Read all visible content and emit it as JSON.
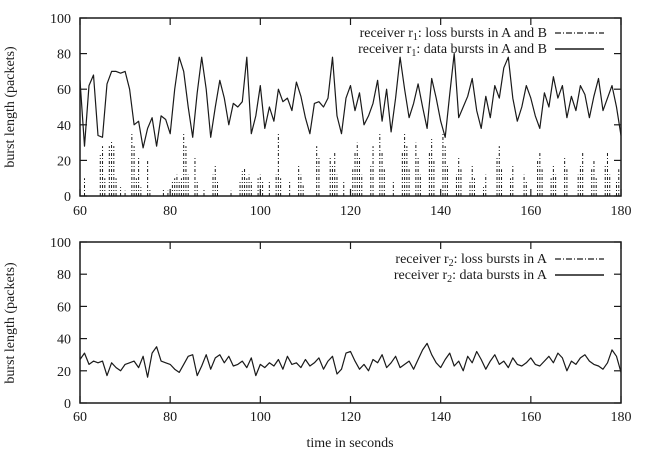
{
  "figure": {
    "background": "#ffffff",
    "line_color": "#1a1a1a"
  },
  "chart_data": [
    {
      "type": "line",
      "position": "top",
      "title": "",
      "xlabel": "",
      "ylabel": "burst length (packets)",
      "xlim": [
        60,
        180
      ],
      "ylim": [
        0,
        100
      ],
      "xticks": [
        60,
        80,
        100,
        120,
        140,
        160,
        180
      ],
      "yticks": [
        0,
        20,
        40,
        60,
        80,
        100
      ],
      "grid": false,
      "legend_position": "top-right-inside",
      "series": [
        {
          "name_pre": "receiver r",
          "name_sub": "1",
          "name_post": ": loss bursts in A and B",
          "style": "impulses-dashdot",
          "points": [
            [
              61,
              10
            ],
            [
              64.5,
              23
            ],
            [
              65,
              28
            ],
            [
              65.5,
              10
            ],
            [
              66.5,
              28
            ],
            [
              67,
              31
            ],
            [
              67.5,
              28
            ],
            [
              68,
              10
            ],
            [
              69,
              5
            ],
            [
              70,
              3
            ],
            [
              71.5,
              35
            ],
            [
              72,
              28
            ],
            [
              72.5,
              10
            ],
            [
              73,
              22
            ],
            [
              73.5,
              5
            ],
            [
              75,
              20
            ],
            [
              75.5,
              4
            ],
            [
              78.5,
              4
            ],
            [
              79.5,
              3
            ],
            [
              80.5,
              8
            ],
            [
              81,
              10
            ],
            [
              81.5,
              12
            ],
            [
              82,
              8
            ],
            [
              82.5,
              10
            ],
            [
              83,
              35
            ],
            [
              83.5,
              28
            ],
            [
              84,
              12
            ],
            [
              85.5,
              22
            ],
            [
              86,
              8
            ],
            [
              87.5,
              4
            ],
            [
              89.5,
              12
            ],
            [
              90,
              18
            ],
            [
              90.5,
              8
            ],
            [
              93.5,
              3
            ],
            [
              95.5,
              8
            ],
            [
              96,
              14
            ],
            [
              96.5,
              16
            ],
            [
              97,
              10
            ],
            [
              97.5,
              12
            ],
            [
              98,
              8
            ],
            [
              99.5,
              10
            ],
            [
              100,
              12
            ],
            [
              100.5,
              8
            ],
            [
              102,
              8
            ],
            [
              103.5,
              12
            ],
            [
              104,
              35
            ],
            [
              104.5,
              10
            ],
            [
              106.5,
              8
            ],
            [
              108.5,
              18
            ],
            [
              109,
              12
            ],
            [
              109.5,
              6
            ],
            [
              112.5,
              28
            ],
            [
              113,
              22
            ],
            [
              115.5,
              22
            ],
            [
              116,
              18
            ],
            [
              116.5,
              25
            ],
            [
              117,
              12
            ],
            [
              118.5,
              8
            ],
            [
              120.5,
              15
            ],
            [
              121,
              25
            ],
            [
              121.5,
              30
            ],
            [
              122,
              22
            ],
            [
              122.5,
              12
            ],
            [
              124.5,
              18
            ],
            [
              125,
              28
            ],
            [
              126.5,
              35
            ],
            [
              127,
              25
            ],
            [
              127.5,
              15
            ],
            [
              129.5,
              8
            ],
            [
              131.5,
              25
            ],
            [
              132,
              35
            ],
            [
              132.5,
              28
            ],
            [
              133,
              15
            ],
            [
              134.5,
              30
            ],
            [
              135,
              22
            ],
            [
              135.5,
              12
            ],
            [
              137.5,
              25
            ],
            [
              138,
              32
            ],
            [
              138.5,
              20
            ],
            [
              140.5,
              35
            ],
            [
              141,
              28
            ],
            [
              141.5,
              18
            ],
            [
              143.5,
              12
            ],
            [
              144,
              22
            ],
            [
              144.5,
              15
            ],
            [
              146.5,
              8
            ],
            [
              147,
              18
            ],
            [
              147.5,
              10
            ],
            [
              149.5,
              5
            ],
            [
              150,
              12
            ],
            [
              152.5,
              22
            ],
            [
              153,
              28
            ],
            [
              153.5,
              15
            ],
            [
              155.5,
              10
            ],
            [
              156,
              18
            ],
            [
              158.5,
              12
            ],
            [
              159,
              8
            ],
            [
              161.5,
              20
            ],
            [
              162,
              25
            ],
            [
              162.5,
              15
            ],
            [
              164.5,
              10
            ],
            [
              165,
              18
            ],
            [
              165.5,
              12
            ],
            [
              167.5,
              22
            ],
            [
              168,
              15
            ],
            [
              170.5,
              12
            ],
            [
              171,
              18
            ],
            [
              171.5,
              25
            ],
            [
              173.5,
              15
            ],
            [
              174,
              20
            ],
            [
              174.5,
              10
            ],
            [
              176.5,
              18
            ],
            [
              177,
              25
            ],
            [
              177.5,
              12
            ],
            [
              179,
              8
            ],
            [
              179.5,
              15
            ]
          ]
        },
        {
          "name_pre": "receiver r",
          "name_sub": "1",
          "name_post": ": data bursts in A and B",
          "style": "solid-line",
          "x_start": 60,
          "x_step": 1,
          "values": [
            65,
            28,
            62,
            68,
            34,
            33,
            63,
            70,
            70,
            69,
            70,
            60,
            40,
            42,
            27,
            38,
            44,
            28,
            45,
            43,
            35,
            60,
            78,
            70,
            50,
            33,
            58,
            78,
            60,
            33,
            50,
            65,
            55,
            40,
            52,
            50,
            53,
            78,
            35,
            45,
            62,
            38,
            50,
            42,
            60,
            53,
            55,
            48,
            64,
            56,
            44,
            35,
            52,
            53,
            50,
            55,
            78,
            45,
            35,
            55,
            62,
            48,
            58,
            40,
            45,
            52,
            65,
            42,
            60,
            36,
            55,
            78,
            60,
            44,
            52,
            63,
            50,
            38,
            66,
            55,
            42,
            33,
            57,
            80,
            44,
            50,
            56,
            66,
            48,
            38,
            56,
            44,
            62,
            55,
            72,
            78,
            55,
            42,
            50,
            62,
            55,
            45,
            38,
            58,
            50,
            67,
            55,
            62,
            44,
            56,
            48,
            62,
            57,
            44,
            56,
            66,
            48,
            55,
            62,
            50,
            34
          ]
        }
      ]
    },
    {
      "type": "line",
      "position": "bottom",
      "title": "",
      "xlabel": "time in seconds",
      "ylabel": "burst length (packets)",
      "xlim": [
        60,
        180
      ],
      "ylim": [
        0,
        100
      ],
      "xticks": [
        60,
        80,
        100,
        120,
        140,
        160,
        180
      ],
      "yticks": [
        0,
        20,
        40,
        60,
        80,
        100
      ],
      "grid": false,
      "legend_position": "top-right-inside",
      "series": [
        {
          "name_pre": "receiver r",
          "name_sub": "2",
          "name_post": ": loss bursts in A",
          "style": "impulses-dashdot",
          "points": []
        },
        {
          "name_pre": "receiver r",
          "name_sub": "2",
          "name_post": ": data bursts in A",
          "style": "solid-line",
          "x_start": 60,
          "x_step": 1,
          "values": [
            27,
            31,
            24,
            26,
            25,
            26,
            17,
            25,
            22,
            20,
            24,
            25,
            26,
            22,
            29,
            16,
            31,
            35,
            26,
            25,
            24,
            21,
            19,
            24,
            29,
            30,
            17,
            23,
            30,
            21,
            28,
            30,
            25,
            29,
            23,
            24,
            26,
            22,
            28,
            17,
            24,
            22,
            25,
            23,
            27,
            21,
            29,
            24,
            25,
            22,
            27,
            23,
            25,
            28,
            21,
            26,
            29,
            18,
            21,
            31,
            32,
            26,
            21,
            24,
            20,
            27,
            25,
            30,
            22,
            25,
            29,
            22,
            24,
            26,
            21,
            27,
            33,
            37,
            30,
            25,
            22,
            27,
            31,
            23,
            26,
            20,
            29,
            25,
            32,
            27,
            21,
            26,
            30,
            24,
            26,
            22,
            28,
            24,
            23,
            25,
            28,
            24,
            23,
            26,
            29,
            25,
            31,
            28,
            20,
            26,
            24,
            28,
            30,
            26,
            24,
            23,
            21,
            25,
            33,
            29,
            19
          ]
        }
      ]
    }
  ]
}
